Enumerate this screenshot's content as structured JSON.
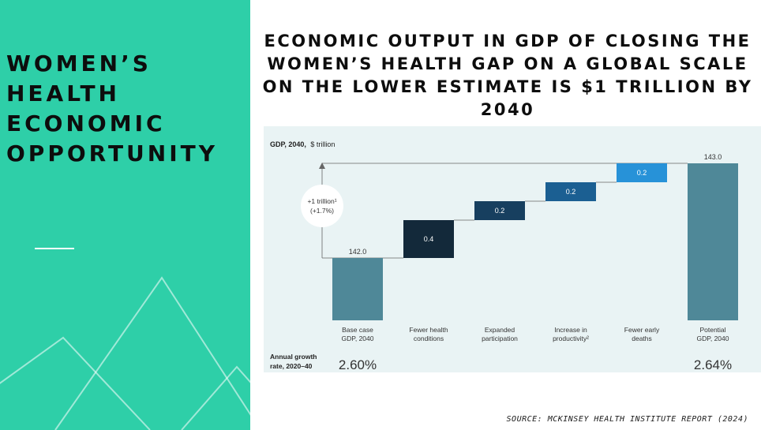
{
  "sidebar": {
    "title_lines": [
      "WOMEN’S",
      "HEALTH",
      "ECONOMIC",
      "OPPORTUNITY"
    ],
    "accent_color": "#2ecfa8"
  },
  "slide": {
    "title": "ECONOMIC OUTPUT IN GDP OF CLOSING THE WOMEN’S HEALTH GAP ON A GLOBAL SCALE ON THE LOWER ESTIMATE IS $1 TRILLION BY 2040",
    "source": "SOURCE: MCKINSEY HEALTH INSTITUTE REPORT (2024)"
  },
  "chart_data": {
    "type": "bar",
    "subtype": "waterfall",
    "axis_label_bold": "GDP, 2040,",
    "axis_label_unit": "$ trillion",
    "categories": [
      [
        "Base case",
        "GDP, 2040"
      ],
      [
        "Fewer health",
        "conditions"
      ],
      [
        "Expanded",
        "participation"
      ],
      [
        "Increase in",
        "productivity²"
      ],
      [
        "Fewer early",
        "deaths"
      ],
      [
        "Potential",
        "GDP, 2040"
      ]
    ],
    "values": [
      142.0,
      0.4,
      0.2,
      0.2,
      0.2,
      143.0
    ],
    "value_labels": [
      "142.0",
      "0.4",
      "0.2",
      "0.2",
      "0.2",
      "143.0"
    ],
    "bar_kinds": [
      "total",
      "delta",
      "delta",
      "delta",
      "delta",
      "total"
    ],
    "colors": [
      "#4f8898",
      "#13293a",
      "#173f5f",
      "#1b5f92",
      "#2792d8",
      "#4f8898"
    ],
    "annotation": [
      "+1 trillion¹",
      "(+1.7%)"
    ],
    "growth_label": [
      "Annual growth",
      "rate, 2020–40"
    ],
    "growth_rates": [
      "2.60%",
      "",
      "",
      "",
      "",
      "2.64%"
    ]
  }
}
